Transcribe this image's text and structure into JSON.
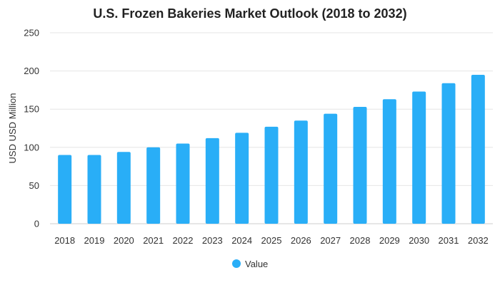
{
  "colors": {
    "bar": "#29aef7",
    "grid": "#e6e6e6",
    "axis": "#cccccc",
    "text": "#333333"
  },
  "chart_data": {
    "type": "bar",
    "title": "U.S. Frozen Bakeries Market Outlook (2018 to 2032)",
    "xlabel": "",
    "ylabel": "USD USD Million",
    "ylim": [
      0,
      250
    ],
    "yticks": [
      0,
      50,
      100,
      150,
      200,
      250
    ],
    "grid": true,
    "legend_position": "bottom-center",
    "categories": [
      "2018",
      "2019",
      "2020",
      "2021",
      "2022",
      "2023",
      "2024",
      "2025",
      "2026",
      "2027",
      "2028",
      "2029",
      "2030",
      "2031",
      "2032"
    ],
    "series": [
      {
        "name": "Value",
        "values": [
          90,
          90,
          94,
          100,
          105,
          112,
          119,
          127,
          135,
          144,
          153,
          163,
          173,
          184,
          195
        ]
      }
    ]
  }
}
